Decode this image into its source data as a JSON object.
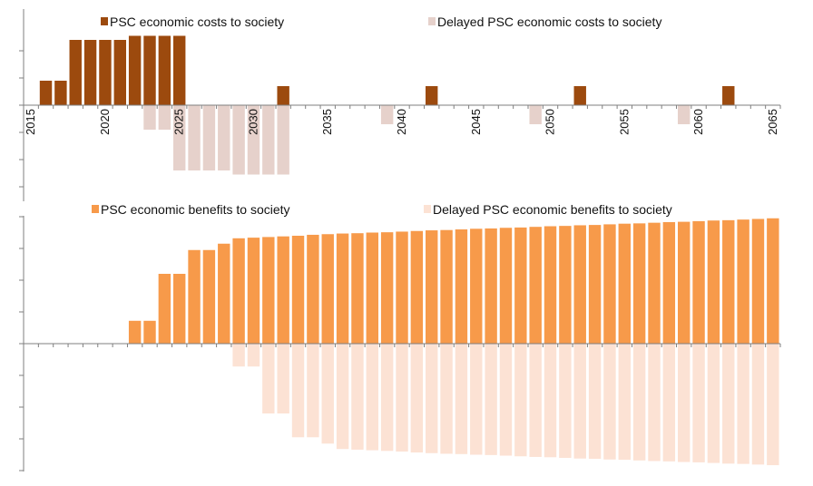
{
  "chart_data": [
    {
      "type": "bar",
      "panel": "top",
      "x": [
        2015,
        2016,
        2017,
        2018,
        2019,
        2020,
        2021,
        2022,
        2023,
        2024,
        2025,
        2026,
        2027,
        2028,
        2029,
        2030,
        2031,
        2032,
        2033,
        2034,
        2035,
        2036,
        2037,
        2038,
        2039,
        2040,
        2041,
        2042,
        2043,
        2044,
        2045,
        2046,
        2047,
        2048,
        2049,
        2050,
        2051,
        2052,
        2053,
        2054,
        2055,
        2056,
        2057,
        2058,
        2059,
        2060,
        2061,
        2062,
        2063,
        2064,
        2065
      ],
      "xtick_labels": [
        "2015",
        "2020",
        "2025",
        "2030",
        "2035",
        "2040",
        "2045",
        "2050",
        "2055",
        "2060",
        "2065"
      ],
      "series": [
        {
          "name": "PSC economic costs to society",
          "color": "#9c4a0e",
          "values": [
            0,
            0.9,
            0.9,
            2.4,
            2.4,
            2.4,
            2.4,
            2.55,
            2.55,
            2.55,
            2.55,
            0,
            0,
            0,
            0,
            0,
            0,
            0.7,
            0,
            0,
            0,
            0,
            0,
            0,
            0,
            0,
            0,
            0.7,
            0,
            0,
            0,
            0,
            0,
            0,
            0,
            0,
            0,
            0.7,
            0,
            0,
            0,
            0,
            0,
            0,
            0,
            0,
            0,
            0.7,
            0,
            0,
            0
          ]
        },
        {
          "name": "Delayed PSC economic costs to society",
          "color": "#e6d1cb",
          "values": [
            0,
            0,
            0,
            0,
            0,
            0,
            0,
            0,
            -0.9,
            -0.9,
            -2.4,
            -2.4,
            -2.4,
            -2.4,
            -2.55,
            -2.55,
            -2.55,
            -2.55,
            0,
            0,
            0,
            0,
            0,
            0,
            -0.7,
            0,
            0,
            0,
            0,
            0,
            0,
            0,
            0,
            0,
            -0.7,
            0,
            0,
            0,
            0,
            0,
            0,
            0,
            0,
            0,
            -0.7,
            0,
            0,
            0,
            0,
            0,
            0
          ]
        }
      ],
      "ylim": [
        -3.2,
        3.0
      ]
    },
    {
      "type": "bar",
      "panel": "bottom",
      "x": [
        2015,
        2016,
        2017,
        2018,
        2019,
        2020,
        2021,
        2022,
        2023,
        2024,
        2025,
        2026,
        2027,
        2028,
        2029,
        2030,
        2031,
        2032,
        2033,
        2034,
        2035,
        2036,
        2037,
        2038,
        2039,
        2040,
        2041,
        2042,
        2043,
        2044,
        2045,
        2046,
        2047,
        2048,
        2049,
        2050,
        2051,
        2052,
        2053,
        2054,
        2055,
        2056,
        2057,
        2058,
        2059,
        2060,
        2061,
        2062,
        2063,
        2064,
        2065
      ],
      "series": [
        {
          "name": "PSC economic benefits to society",
          "color": "#f79a4a",
          "values": [
            0,
            0,
            0,
            0,
            0,
            0,
            0,
            0.72,
            0.72,
            2.2,
            2.2,
            2.95,
            2.95,
            3.15,
            3.32,
            3.34,
            3.36,
            3.38,
            3.4,
            3.43,
            3.45,
            3.47,
            3.48,
            3.5,
            3.51,
            3.53,
            3.55,
            3.57,
            3.58,
            3.6,
            3.62,
            3.63,
            3.65,
            3.66,
            3.68,
            3.7,
            3.71,
            3.73,
            3.74,
            3.76,
            3.78,
            3.79,
            3.81,
            3.83,
            3.84,
            3.86,
            3.88,
            3.89,
            3.91,
            3.93,
            3.95
          ]
        },
        {
          "name": "Delayed PSC economic benefits to society",
          "color": "#fce2d4",
          "values": [
            0,
            0,
            0,
            0,
            0,
            0,
            0,
            0,
            0,
            0,
            0,
            0,
            0,
            0,
            -0.72,
            -0.72,
            -2.2,
            -2.2,
            -2.95,
            -2.95,
            -3.15,
            -3.32,
            -3.34,
            -3.36,
            -3.38,
            -3.4,
            -3.43,
            -3.45,
            -3.47,
            -3.48,
            -3.5,
            -3.51,
            -3.53,
            -3.55,
            -3.57,
            -3.58,
            -3.6,
            -3.62,
            -3.63,
            -3.65,
            -3.66,
            -3.68,
            -3.7,
            -3.71,
            -3.73,
            -3.74,
            -3.76,
            -3.78,
            -3.79,
            -3.81,
            -3.83
          ]
        }
      ],
      "ylim": [
        -4.0,
        4.0
      ]
    }
  ]
}
